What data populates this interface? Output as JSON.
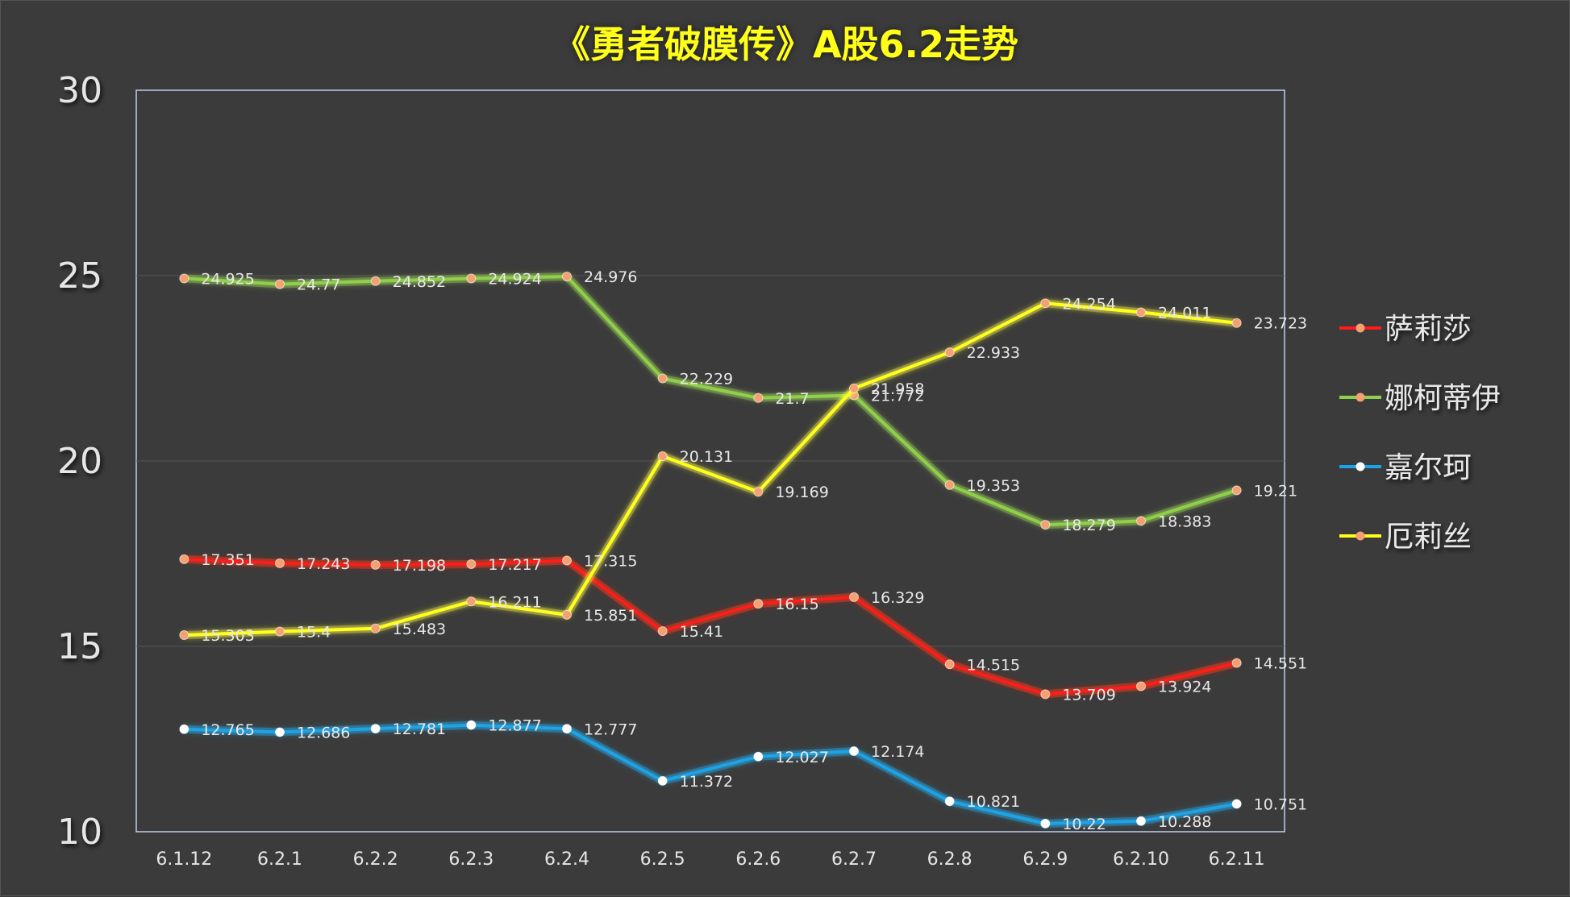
{
  "chart_data": {
    "type": "line",
    "title": "《勇者破膜传》A股6.2走势",
    "xlabel": "",
    "ylabel": "",
    "ylim": [
      10,
      30
    ],
    "yticks": [
      10,
      15,
      20,
      25,
      30
    ],
    "grid": true,
    "legend_position": "right",
    "categories": [
      "6.1.12",
      "6.2.1",
      "6.2.2",
      "6.2.3",
      "6.2.4",
      "6.2.5",
      "6.2.6",
      "6.2.7",
      "6.2.8",
      "6.2.9",
      "6.2.10",
      "6.2.11"
    ],
    "series": [
      {
        "name": "萨莉莎",
        "color": "#ff1a1a",
        "glow": "#ff6a00",
        "marker": "#f4a070",
        "values": [
          17.351,
          17.243,
          17.198,
          17.217,
          17.315,
          15.41,
          16.15,
          16.329,
          14.515,
          13.709,
          13.924,
          14.551
        ]
      },
      {
        "name": "娜柯蒂伊",
        "color": "#8ed14a",
        "glow": "#c8e87a",
        "marker": "#f4a070",
        "values": [
          24.925,
          24.77,
          24.852,
          24.924,
          24.976,
          22.229,
          21.7,
          21.772,
          19.353,
          18.279,
          18.383,
          19.21
        ]
      },
      {
        "name": "嘉尔珂",
        "color": "#1aa3e8",
        "glow": "#3ec7ff",
        "marker": "#ffffff",
        "values": [
          12.765,
          12.686,
          12.781,
          12.877,
          12.777,
          11.372,
          12.027,
          12.174,
          10.821,
          10.22,
          10.288,
          10.751
        ]
      },
      {
        "name": "厄莉丝",
        "color": "#ffff1a",
        "glow": "#fff6a0",
        "marker": "#f4a070",
        "values": [
          15.303,
          15.4,
          15.483,
          16.211,
          15.851,
          20.131,
          19.169,
          21.958,
          22.933,
          24.254,
          24.011,
          23.723
        ]
      }
    ]
  }
}
